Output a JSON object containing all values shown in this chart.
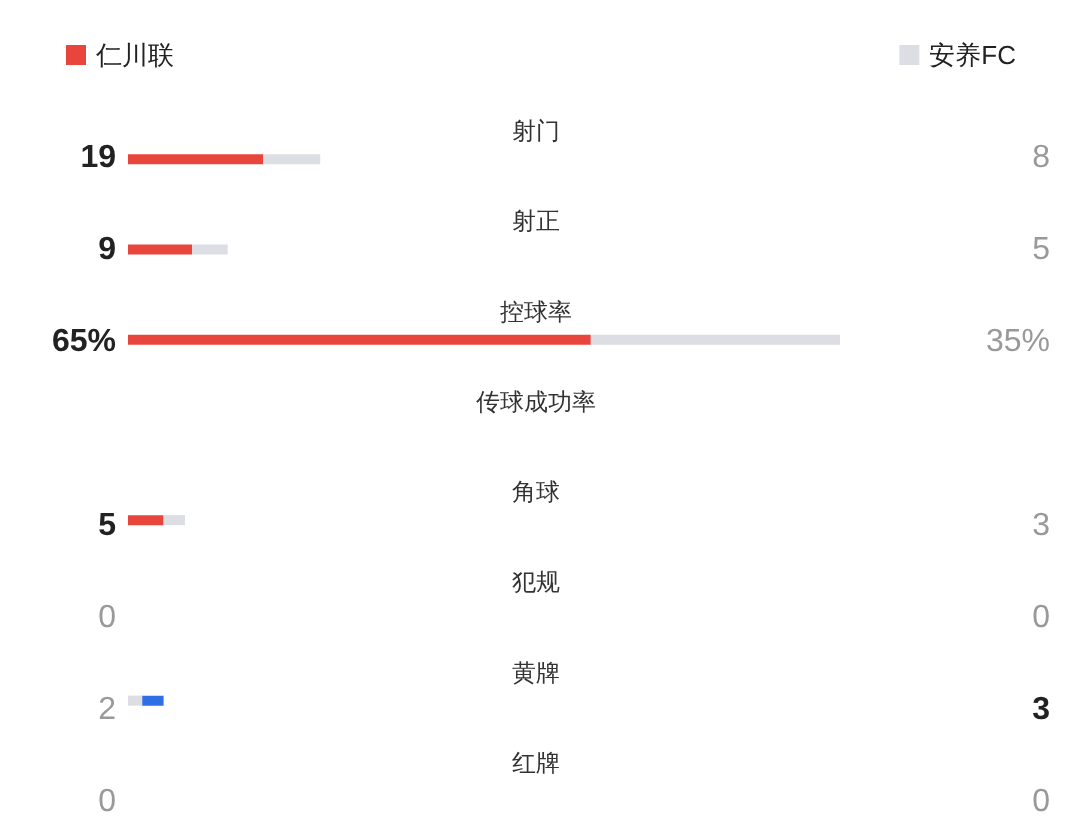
{
  "chart_data": {
    "type": "bar",
    "orientation": "horizontal",
    "stacked": true,
    "tick_labels": "y",
    "legend": "top",
    "categories": [
      "射门",
      "射正",
      "控球率",
      "传球成功率",
      "角球",
      "犯规",
      "黄牌",
      "红牌"
    ],
    "series": [
      {
        "name": "仁川联",
        "colors": [
          "#e8453c",
          "#e8453c",
          "#e8453c",
          null,
          "#e8453c",
          "#e8453c",
          "#dcdee3",
          "#e8453c"
        ],
        "values": [
          19,
          9,
          65,
          null,
          5,
          0,
          2,
          0
        ],
        "value_labels": [
          "19",
          "9",
          "65%",
          null,
          "5",
          "0",
          "2",
          "0"
        ]
      },
      {
        "name": "安养FC",
        "colors": [
          "#dcdee3",
          "#dcdee3",
          "#dcdee3",
          null,
          "#dcdee3",
          "#dcdee3",
          "#2f6fe4",
          "#dcdee3"
        ],
        "values": [
          8,
          5,
          35,
          null,
          3,
          0,
          3,
          0
        ],
        "value_labels": [
          "8",
          "5",
          "35%",
          null,
          "3",
          "0",
          "3",
          "0"
        ]
      }
    ]
  }
}
